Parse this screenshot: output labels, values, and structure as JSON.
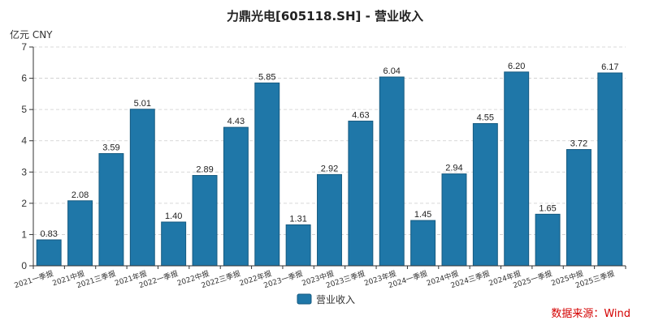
{
  "title": "力鼎光电[605118.SH] - 营业收入",
  "unit_label": "亿元  CNY",
  "source": "数据来源：Wind",
  "colors": {
    "bar": "#1f77a8",
    "bar_edge": "#155a80",
    "grid": "#cccccc",
    "axis": "#333333",
    "source": "#d40000"
  },
  "chart_data": {
    "type": "bar",
    "title": "力鼎光电[605118.SH] - 营业收入",
    "ylabel": "亿元  CNY",
    "xlabel": "",
    "ylim": [
      0,
      7
    ],
    "yticks": [
      0,
      1,
      2,
      3,
      4,
      5,
      6,
      7
    ],
    "grid": true,
    "legend": "bottom-center",
    "categories": [
      "2021一季报",
      "2021中报",
      "2021三季报",
      "2021年报",
      "2022一季报",
      "2022中报",
      "2022三季报",
      "2022年报",
      "2023一季报",
      "2023中报",
      "2023三季报",
      "2023年报",
      "2024一季报",
      "2024中报",
      "2024三季报",
      "2024年报",
      "2025一季报",
      "2025中报",
      "2025三季报"
    ],
    "series": [
      {
        "name": "营业收入",
        "values": [
          0.83,
          2.08,
          3.59,
          5.01,
          1.4,
          2.89,
          4.43,
          5.85,
          1.31,
          2.92,
          4.63,
          6.04,
          1.45,
          2.94,
          4.55,
          6.2,
          1.65,
          3.72,
          6.17
        ]
      }
    ],
    "data_labels": [
      "0.83",
      "2.08",
      "3.59",
      "5.01",
      "1.40",
      "2.89",
      "4.43",
      "5.85",
      "1.31",
      "2.92",
      "4.63",
      "6.04",
      "1.45",
      "2.94",
      "4.55",
      "6.20",
      "1.65",
      "3.72",
      "6.17"
    ]
  }
}
